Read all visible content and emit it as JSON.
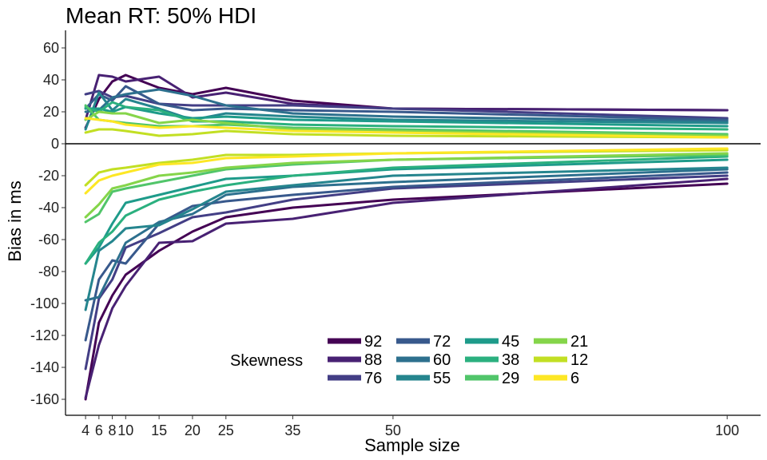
{
  "chart_data": {
    "type": "line",
    "title": "Mean RT: 50% HDI",
    "xlabel": "Sample size",
    "ylabel": "Bias in ms",
    "x": [
      4,
      6,
      8,
      10,
      15,
      20,
      25,
      35,
      50,
      100
    ],
    "x_ticks": [
      4,
      6,
      8,
      10,
      15,
      20,
      25,
      35,
      50,
      100
    ],
    "x_tick_labels": [
      "4",
      "6",
      "8",
      "10",
      "15",
      "20",
      "25",
      "35",
      "50",
      "100"
    ],
    "xlim": [
      1,
      105
    ],
    "y_ticks": [
      60,
      40,
      20,
      0,
      -20,
      -40,
      -60,
      -80,
      -100,
      -120,
      -140,
      -160
    ],
    "y_tick_labels": [
      "60",
      "40",
      "20",
      "0",
      "-20",
      "-40",
      "-60",
      "-80",
      "-100",
      "-120",
      "-140",
      "-160"
    ],
    "ylim": [
      -170,
      71
    ],
    "zero_line": true,
    "grid": false,
    "legend": {
      "title": "Skewness",
      "placement": "bottom-center, inside plot",
      "entries": [
        "92",
        "88",
        "76",
        "72",
        "60",
        "55",
        "45",
        "38",
        "29",
        "21",
        "12",
        "6"
      ]
    },
    "series": [
      {
        "name": "92",
        "color": "#440154",
        "upper": [
          10,
          28,
          39,
          43,
          35,
          31,
          35,
          27,
          22,
          21
        ],
        "lower": [
          -160,
          -112,
          -95,
          -82,
          -67,
          -55,
          -46,
          -40,
          -35,
          -25
        ]
      },
      {
        "name": "88",
        "color": "#482173",
        "upper": [
          15,
          43,
          42,
          39,
          42,
          29,
          32,
          25,
          22,
          21
        ],
        "lower": [
          -159,
          -126,
          -103,
          -89,
          -62,
          -61,
          -50,
          -47,
          -37,
          -22
        ]
      },
      {
        "name": "76",
        "color": "#433E85",
        "upper": [
          31,
          33,
          29,
          30,
          25,
          24,
          24,
          24,
          22,
          16
        ],
        "lower": [
          -141,
          -97,
          -85,
          -65,
          -56,
          -46,
          -43,
          -35,
          -28,
          -20
        ]
      },
      {
        "name": "72",
        "color": "#38598C",
        "upper": [
          22,
          31,
          27,
          36,
          25,
          21,
          22,
          21,
          20,
          15
        ],
        "lower": [
          -123,
          -85,
          -73,
          -75,
          -50,
          -39,
          -36,
          -32,
          -27,
          -18
        ]
      },
      {
        "name": "60",
        "color": "#2D708E",
        "upper": [
          20,
          21,
          29,
          31,
          34,
          30,
          24,
          19,
          17,
          14
        ],
        "lower": [
          -98,
          -96,
          -79,
          -62,
          -49,
          -44,
          -32,
          -27,
          -24,
          -16
        ]
      },
      {
        "name": "55",
        "color": "#25858E",
        "upper": [
          9,
          32,
          21,
          28,
          22,
          15,
          19,
          17,
          15,
          13
        ],
        "lower": [
          -104,
          -67,
          -61,
          -53,
          -51,
          -41,
          -30,
          -26,
          -20,
          -15
        ]
      },
      {
        "name": "45",
        "color": "#1E9B8A",
        "upper": [
          22,
          22,
          20,
          23,
          19,
          16,
          17,
          15,
          14,
          11
        ],
        "lower": [
          -75,
          -65,
          -50,
          -37,
          -32,
          -27,
          -22,
          -20,
          -16,
          -10
        ]
      },
      {
        "name": "38",
        "color": "#2BB07F",
        "upper": [
          23,
          20,
          26,
          23,
          21,
          14,
          14,
          12,
          11,
          9
        ],
        "lower": [
          -75,
          -62,
          -55,
          -45,
          -35,
          -30,
          -26,
          -20,
          -15,
          -8
        ]
      },
      {
        "name": "29",
        "color": "#51C56A",
        "upper": [
          24,
          15,
          14,
          13,
          11,
          11,
          12,
          10,
          9,
          6
        ],
        "lower": [
          -49,
          -44,
          -30,
          -28,
          -24,
          -20,
          -16,
          -13,
          -10,
          -7
        ]
      },
      {
        "name": "21",
        "color": "#85D54A",
        "upper": [
          15,
          20,
          19,
          19,
          13,
          15,
          13,
          9,
          8,
          5
        ],
        "lower": [
          -46,
          -38,
          -28,
          -26,
          -20,
          -18,
          -15,
          -12,
          -10,
          -6
        ]
      },
      {
        "name": "12",
        "color": "#C2DF23",
        "upper": [
          7,
          9,
          9,
          8,
          5,
          6,
          8,
          6,
          5,
          4
        ],
        "lower": [
          -26,
          -18,
          -16,
          -15,
          -12,
          -10,
          -7,
          -7,
          -6,
          -4
        ]
      },
      {
        "name": "6",
        "color": "#FDE725",
        "upper": [
          16,
          15,
          14,
          12,
          10,
          11,
          10,
          8,
          7,
          4
        ],
        "lower": [
          -31,
          -23,
          -20,
          -18,
          -13,
          -12,
          -9,
          -8,
          -6,
          -3
        ]
      }
    ]
  }
}
